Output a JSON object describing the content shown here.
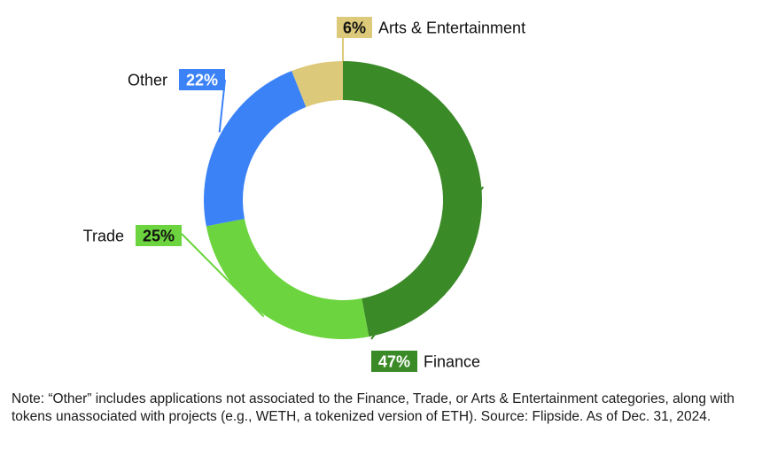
{
  "chart_data": {
    "type": "pie",
    "donut": true,
    "categories": [
      "Finance",
      "Trade",
      "Other",
      "Arts & Entertainment"
    ],
    "values": [
      47,
      25,
      22,
      6
    ],
    "value_labels": [
      "47%",
      "25%",
      "22%",
      "6%"
    ],
    "colors": [
      "#3b8a28",
      "#6cd43e",
      "#3b82f6",
      "#dcc97a"
    ],
    "label_text_colors": [
      "#ffffff",
      "#111111",
      "#ffffff",
      "#111111"
    ],
    "start": "12 o'clock",
    "direction": "clockwise",
    "legend": "none (direct labels with leader lines)"
  },
  "note": "Note: “Other” includes applications not associated to the Finance, Trade, or Arts & Entertainment categories, along with tokens unassociated with projects (e.g., WETH, a tokenized version of ETH). Source: Flipside. As of Dec. 31, 2024."
}
